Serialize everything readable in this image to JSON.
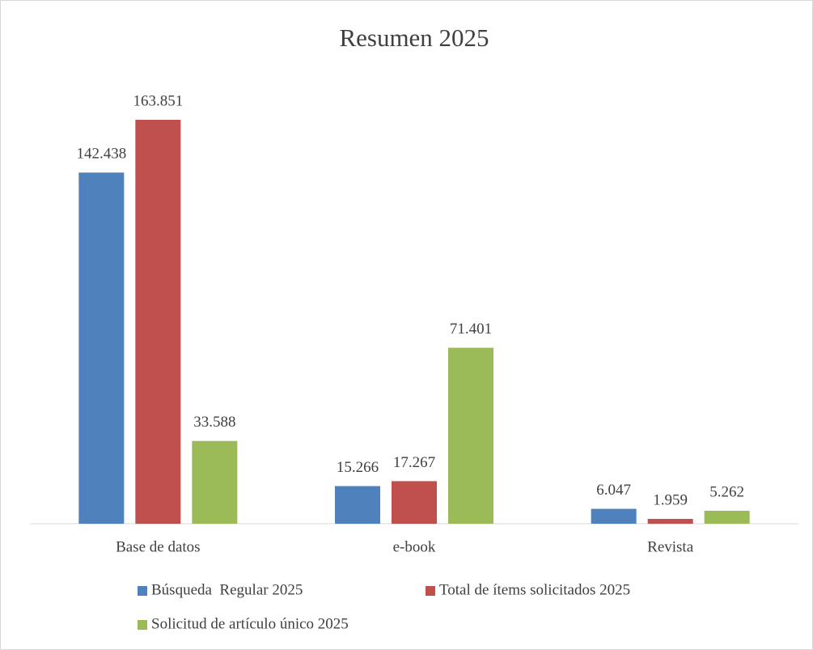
{
  "chart_data": {
    "type": "bar",
    "title": "Resumen 2025",
    "categories": [
      "Base de datos",
      "e-book",
      "Revista"
    ],
    "series": [
      {
        "name": "Búsqueda  Regular 2025",
        "color": "#4f81bd",
        "values": [
          142438,
          15266,
          6047
        ],
        "value_labels": [
          "142.438",
          "15.266",
          "6.047"
        ]
      },
      {
        "name": "Total de ítems solicitados 2025",
        "color": "#c0504d",
        "values": [
          163851,
          17267,
          1959
        ],
        "value_labels": [
          "163.851",
          "17.267",
          "1.959"
        ]
      },
      {
        "name": "Solicitud de artículo único 2025",
        "color": "#9bbb59",
        "values": [
          33588,
          71401,
          5262
        ],
        "value_labels": [
          "33.588",
          "71.401",
          "5.262"
        ]
      }
    ]
  }
}
